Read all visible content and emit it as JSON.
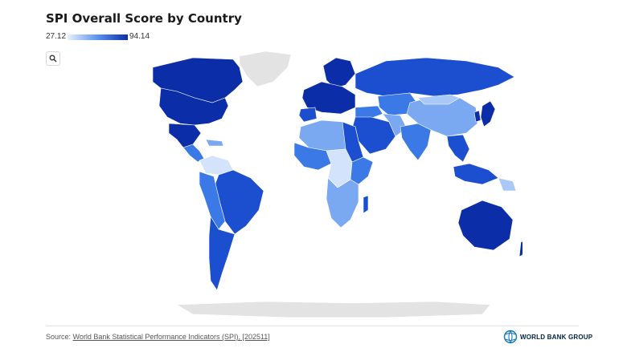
{
  "title": "SPI Overall Score by Country",
  "legend": {
    "min": "27.12",
    "max": "94.14",
    "colors": [
      "#e8f1ff",
      "#5a92f0",
      "#0b2ea8"
    ]
  },
  "controls": {
    "search_icon": "search-icon"
  },
  "footer": {
    "source_prefix": "Source: ",
    "source_link": "World Bank Statistical Performance Indicators (SPI), [202511]",
    "brand": "WORLD BANK GROUP",
    "brand_icon": "globe-icon"
  },
  "map_colors": {
    "very_dark": "#0b2ea8",
    "dark": "#1c4fd0",
    "mid": "#3b7ae6",
    "light": "#7aa9f2",
    "lighter": "#a9c8f7",
    "pale": "#d2e3fb",
    "no_data": "#e3e3e3"
  }
}
